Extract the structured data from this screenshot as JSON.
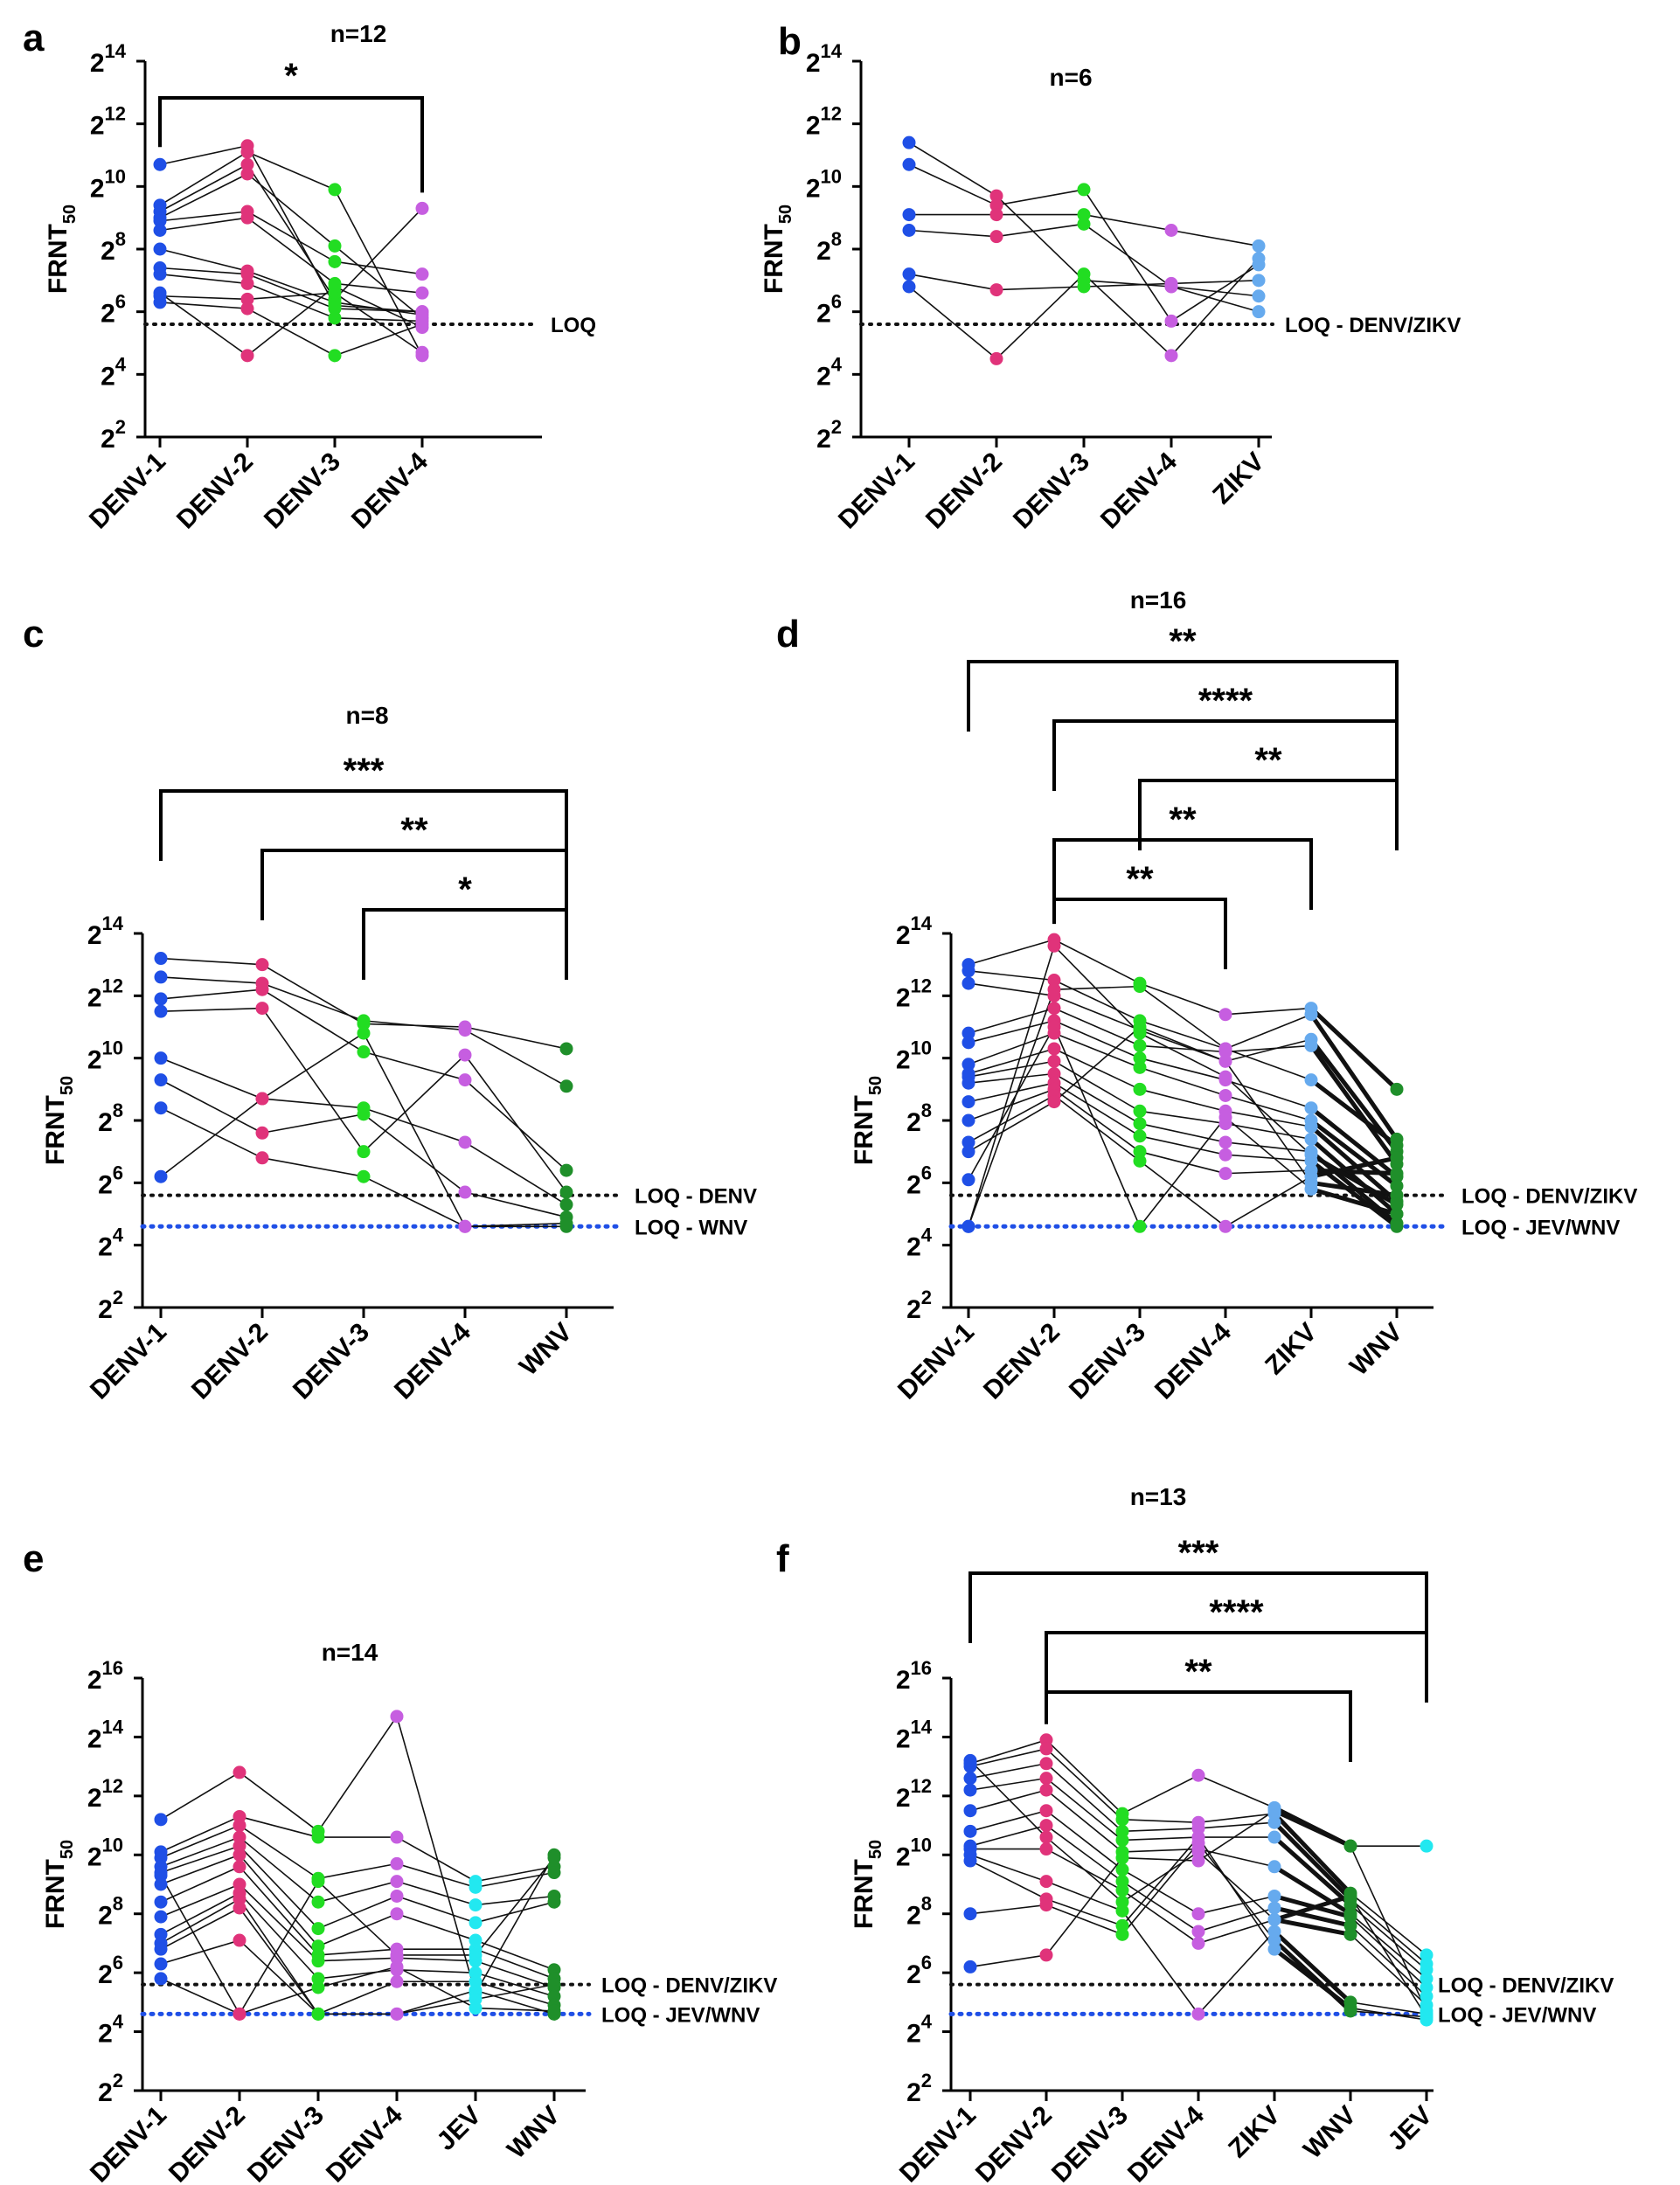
{
  "figure": {
    "y_axis_label": "FRNT",
    "y_axis_subscript": "50",
    "y_axis_base": "2"
  },
  "colors": {
    "DENV-1": "#1f4fe6",
    "DENV-2": "#e0337a",
    "DENV-3": "#22dd22",
    "DENV-4": "#c65ee0",
    "ZIKV": "#66aaee",
    "WNV": "#1f8f2a",
    "JEV": "#22e8f0",
    "loq_dark": "#111111",
    "loq_blue": "#1f4fe6",
    "line": "#111111"
  },
  "chart_data": [
    {
      "panel": "a",
      "type": "scatter",
      "title": "n=12",
      "ylabel": "FRNT50",
      "ylim": [
        2,
        14
      ],
      "yticks": [
        2,
        4,
        6,
        8,
        10,
        12,
        14
      ],
      "categories": [
        "DENV-1",
        "DENV-2",
        "DENV-3",
        "DENV-4"
      ],
      "loq": [
        {
          "label": "LOQ",
          "value": 5.6,
          "color": "dark"
        }
      ],
      "significance": [
        {
          "from": "DENV-1",
          "to": "DENV-4",
          "label": "*"
        }
      ],
      "thick_segments": [],
      "subjects": [
        [
          10.7,
          11.3,
          6.2,
          6.0
        ],
        [
          9.4,
          11.1,
          9.9,
          4.6
        ],
        [
          9.2,
          10.7,
          6.4,
          9.3
        ],
        [
          9.0,
          10.4,
          8.1,
          5.8
        ],
        [
          8.9,
          9.2,
          7.6,
          7.2
        ],
        [
          8.6,
          9.0,
          6.9,
          6.6
        ],
        [
          8.0,
          7.3,
          6.3,
          5.9
        ],
        [
          7.4,
          7.2,
          6.1,
          6.0
        ],
        [
          7.2,
          6.9,
          5.8,
          5.7
        ],
        [
          6.5,
          6.4,
          6.6,
          4.7
        ],
        [
          6.3,
          6.1,
          4.6,
          5.6
        ],
        [
          6.6,
          4.6,
          6.8,
          5.5
        ]
      ]
    },
    {
      "panel": "b",
      "type": "scatter",
      "title": "n=6",
      "ylabel": "FRNT50",
      "ylim": [
        2,
        14
      ],
      "yticks": [
        2,
        4,
        6,
        8,
        10,
        12,
        14
      ],
      "categories": [
        "DENV-1",
        "DENV-2",
        "DENV-3",
        "DENV-4",
        "ZIKV"
      ],
      "loq": [
        {
          "label": "LOQ - DENV/ZIKV",
          "value": 5.6,
          "color": "dark"
        }
      ],
      "significance": [],
      "thick_segments": [],
      "subjects": [
        [
          11.4,
          9.7,
          7.0,
          6.8,
          6.0
        ],
        [
          10.7,
          9.4,
          9.9,
          5.7,
          7.5
        ],
        [
          9.1,
          9.1,
          9.1,
          8.6,
          8.1
        ],
        [
          8.6,
          8.4,
          8.8,
          6.8,
          6.5
        ],
        [
          7.2,
          6.7,
          6.8,
          6.9,
          7.0
        ],
        [
          6.8,
          4.5,
          7.2,
          4.6,
          7.7
        ]
      ]
    },
    {
      "panel": "c",
      "type": "scatter",
      "title": "n=8",
      "ylabel": "FRNT50",
      "ylim": [
        2,
        14
      ],
      "yticks": [
        2,
        4,
        6,
        8,
        10,
        12,
        14
      ],
      "categories": [
        "DENV-1",
        "DENV-2",
        "DENV-3",
        "DENV-4",
        "WNV"
      ],
      "loq": [
        {
          "label": "LOQ - DENV",
          "value": 5.6,
          "color": "dark"
        },
        {
          "label": "LOQ - WNV",
          "value": 4.6,
          "color": "blue"
        }
      ],
      "significance": [
        {
          "from": "DENV-1",
          "to": "WNV",
          "label": "***"
        },
        {
          "from": "DENV-2",
          "to": "WNV",
          "label": "**"
        },
        {
          "from": "DENV-3",
          "to": "WNV",
          "label": "*"
        }
      ],
      "thick_segments": [],
      "subjects": [
        [
          13.2,
          13.0,
          11.1,
          11.0,
          10.3
        ],
        [
          12.6,
          12.4,
          11.2,
          10.9,
          9.1
        ],
        [
          11.9,
          12.2,
          10.2,
          9.3,
          6.4
        ],
        [
          11.5,
          11.6,
          7.0,
          10.1,
          5.7
        ],
        [
          10.0,
          8.7,
          8.4,
          7.3,
          5.3
        ],
        [
          9.3,
          7.6,
          8.2,
          5.7,
          4.9
        ],
        [
          8.4,
          6.8,
          6.2,
          4.6,
          4.6
        ],
        [
          6.2,
          8.7,
          10.8,
          4.6,
          4.7
        ]
      ]
    },
    {
      "panel": "d",
      "type": "scatter",
      "title": "n=16",
      "ylabel": "FRNT50",
      "ylim": [
        2,
        14
      ],
      "yticks": [
        2,
        4,
        6,
        8,
        10,
        12,
        14
      ],
      "categories": [
        "DENV-1",
        "DENV-2",
        "DENV-3",
        "DENV-4",
        "ZIKV",
        "WNV"
      ],
      "loq": [
        {
          "label": "LOQ - DENV/ZIKV",
          "value": 5.6,
          "color": "dark"
        },
        {
          "label": "LOQ - JEV/WNV",
          "value": 4.6,
          "color": "blue"
        }
      ],
      "significance": [
        {
          "from": "DENV-1",
          "to": "WNV",
          "label": "**"
        },
        {
          "from": "DENV-2",
          "to": "WNV",
          "label": "****"
        },
        {
          "from": "DENV-3",
          "to": "WNV",
          "label": "**"
        },
        {
          "from": "DENV-2",
          "to": "ZIKV",
          "label": "**"
        },
        {
          "from": "DENV-2",
          "to": "DENV-4",
          "label": "**"
        }
      ],
      "thick_segments": [
        4
      ],
      "subjects": [
        [
          13.0,
          13.8,
          12.4,
          11.4,
          11.6,
          9.0
        ],
        [
          12.8,
          12.5,
          11.2,
          10.3,
          11.4,
          7.4
        ],
        [
          12.4,
          12.0,
          10.9,
          9.9,
          10.6,
          7.0
        ],
        [
          10.8,
          11.6,
          10.4,
          10.2,
          10.4,
          6.6
        ],
        [
          10.5,
          11.2,
          10.0,
          9.3,
          8.4,
          6.2
        ],
        [
          9.8,
          10.8,
          9.7,
          8.8,
          8.0,
          5.9
        ],
        [
          9.5,
          10.3,
          9.0,
          8.3,
          7.8,
          5.4
        ],
        [
          9.4,
          9.9,
          8.3,
          7.9,
          7.4,
          5.0
        ],
        [
          9.2,
          9.5,
          7.9,
          7.3,
          7.0,
          4.7
        ],
        [
          8.6,
          9.2,
          7.5,
          6.9,
          6.7,
          4.6
        ],
        [
          8.0,
          9.0,
          7.0,
          6.3,
          6.4,
          6.3
        ],
        [
          7.3,
          8.8,
          6.7,
          4.6,
          6.2,
          6.8
        ],
        [
          7.0,
          8.6,
          11.0,
          9.9,
          6.0,
          5.6
        ],
        [
          6.1,
          11.0,
          4.6,
          8.1,
          5.8,
          5.0
        ],
        [
          4.6,
          12.2,
          12.3,
          10.3,
          9.3,
          7.2
        ],
        [
          4.6,
          13.6,
          10.8,
          9.4,
          6.9,
          5.3
        ]
      ]
    },
    {
      "panel": "e",
      "type": "scatter",
      "title": "n=14",
      "ylabel": "FRNT50",
      "ylim": [
        2,
        16
      ],
      "yticks": [
        2,
        4,
        6,
        8,
        10,
        12,
        14,
        16
      ],
      "categories": [
        "DENV-1",
        "DENV-2",
        "DENV-3",
        "DENV-4",
        "JEV",
        "WNV"
      ],
      "loq": [
        {
          "label": "LOQ - DENV/ZIKV",
          "value": 5.6,
          "color": "dark"
        },
        {
          "label": "LOQ - JEV/WNV",
          "value": 4.6,
          "color": "blue"
        }
      ],
      "significance": [],
      "thick_segments": [],
      "subjects": [
        [
          11.2,
          12.8,
          10.8,
          14.7,
          5.3,
          10.0
        ],
        [
          10.1,
          11.3,
          10.6,
          10.6,
          9.1,
          9.6
        ],
        [
          9.9,
          11.0,
          9.2,
          9.7,
          8.9,
          9.4
        ],
        [
          9.6,
          10.6,
          8.4,
          9.1,
          8.3,
          8.6
        ],
        [
          9.4,
          10.3,
          7.5,
          8.6,
          7.7,
          8.4
        ],
        [
          9.0,
          10.0,
          6.9,
          8.0,
          7.1,
          6.1
        ],
        [
          8.4,
          9.6,
          6.6,
          6.8,
          6.8,
          5.8
        ],
        [
          7.9,
          9.0,
          6.4,
          6.5,
          6.4,
          5.5
        ],
        [
          7.3,
          8.7,
          5.8,
          6.1,
          6.0,
          5.2
        ],
        [
          7.0,
          8.5,
          4.6,
          5.7,
          5.7,
          4.9
        ],
        [
          6.8,
          8.2,
          4.6,
          4.6,
          5.4,
          4.6
        ],
        [
          6.3,
          7.1,
          4.6,
          4.6,
          5.1,
          5.6
        ],
        [
          5.8,
          4.6,
          5.5,
          6.2,
          4.8,
          4.7
        ],
        [
          9.3,
          4.6,
          9.1,
          6.6,
          6.6,
          9.9
        ]
      ]
    },
    {
      "panel": "f",
      "type": "scatter",
      "title": "n=13",
      "ylabel": "FRNT50",
      "ylim": [
        2,
        16
      ],
      "yticks": [
        2,
        4,
        6,
        8,
        10,
        12,
        14,
        16
      ],
      "categories": [
        "DENV-1",
        "DENV-2",
        "DENV-3",
        "DENV-4",
        "ZIKV",
        "WNV",
        "JEV"
      ],
      "loq": [
        {
          "label": "LOQ - DENV/ZIKV",
          "value": 5.6,
          "color": "dark"
        },
        {
          "label": "LOQ - JEV/WNV",
          "value": 4.6,
          "color": "blue"
        }
      ],
      "significance": [
        {
          "from": "DENV-1",
          "to": "JEV",
          "label": "***"
        },
        {
          "from": "DENV-2",
          "to": "JEV",
          "label": "****"
        },
        {
          "from": "DENV-2",
          "to": "WNV",
          "label": "**"
        }
      ],
      "thick_segments": [
        4
      ],
      "subjects": [
        [
          13.1,
          13.9,
          11.4,
          12.7,
          11.6,
          10.3,
          10.3
        ],
        [
          13.0,
          13.6,
          11.2,
          11.1,
          11.4,
          8.7,
          6.6
        ],
        [
          12.6,
          13.1,
          10.8,
          10.9,
          11.1,
          8.5,
          6.3
        ],
        [
          12.2,
          12.6,
          10.5,
          10.6,
          10.6,
          8.3,
          6.1
        ],
        [
          11.5,
          12.2,
          10.1,
          10.2,
          9.6,
          8.0,
          5.8
        ],
        [
          10.8,
          11.5,
          9.5,
          8.0,
          8.6,
          7.9,
          5.5
        ],
        [
          10.3,
          11.0,
          9.1,
          7.4,
          8.2,
          7.6,
          5.2
        ],
        [
          10.2,
          10.2,
          8.8,
          7.0,
          7.8,
          7.3,
          4.9
        ],
        [
          10.0,
          9.1,
          8.1,
          4.6,
          7.4,
          5.0,
          4.6
        ],
        [
          9.8,
          8.5,
          7.6,
          10.6,
          6.8,
          4.8,
          4.4
        ],
        [
          8.0,
          8.3,
          7.3,
          10.4,
          7.1,
          4.7,
          4.5
        ],
        [
          6.2,
          6.6,
          9.9,
          9.8,
          11.5,
          10.3,
          4.7
        ],
        [
          13.2,
          10.6,
          8.4,
          10.1,
          7.8,
          8.6,
          4.5
        ]
      ]
    }
  ]
}
